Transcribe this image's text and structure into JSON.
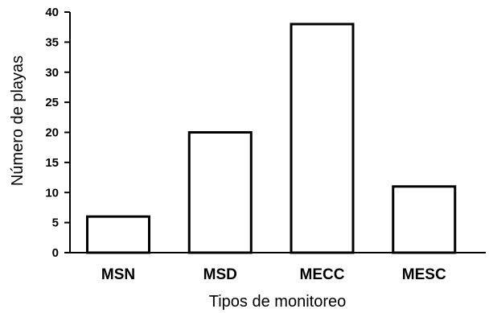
{
  "chart_data": {
    "type": "bar",
    "categories": [
      "MSN",
      "MSD",
      "MECC",
      "MESC"
    ],
    "values": [
      6,
      20,
      38,
      11
    ],
    "xlabel": "Tipos de monitoreo",
    "ylabel": "Número de playas",
    "ylim": [
      0,
      40
    ],
    "yticks": [
      0,
      5,
      10,
      15,
      20,
      25,
      30,
      35,
      40
    ],
    "grid": false,
    "legend": "none",
    "colors": {
      "bar_fill": "#ffffff",
      "bar_stroke": "#000000",
      "axis": "#000000",
      "text": "#000000"
    }
  }
}
